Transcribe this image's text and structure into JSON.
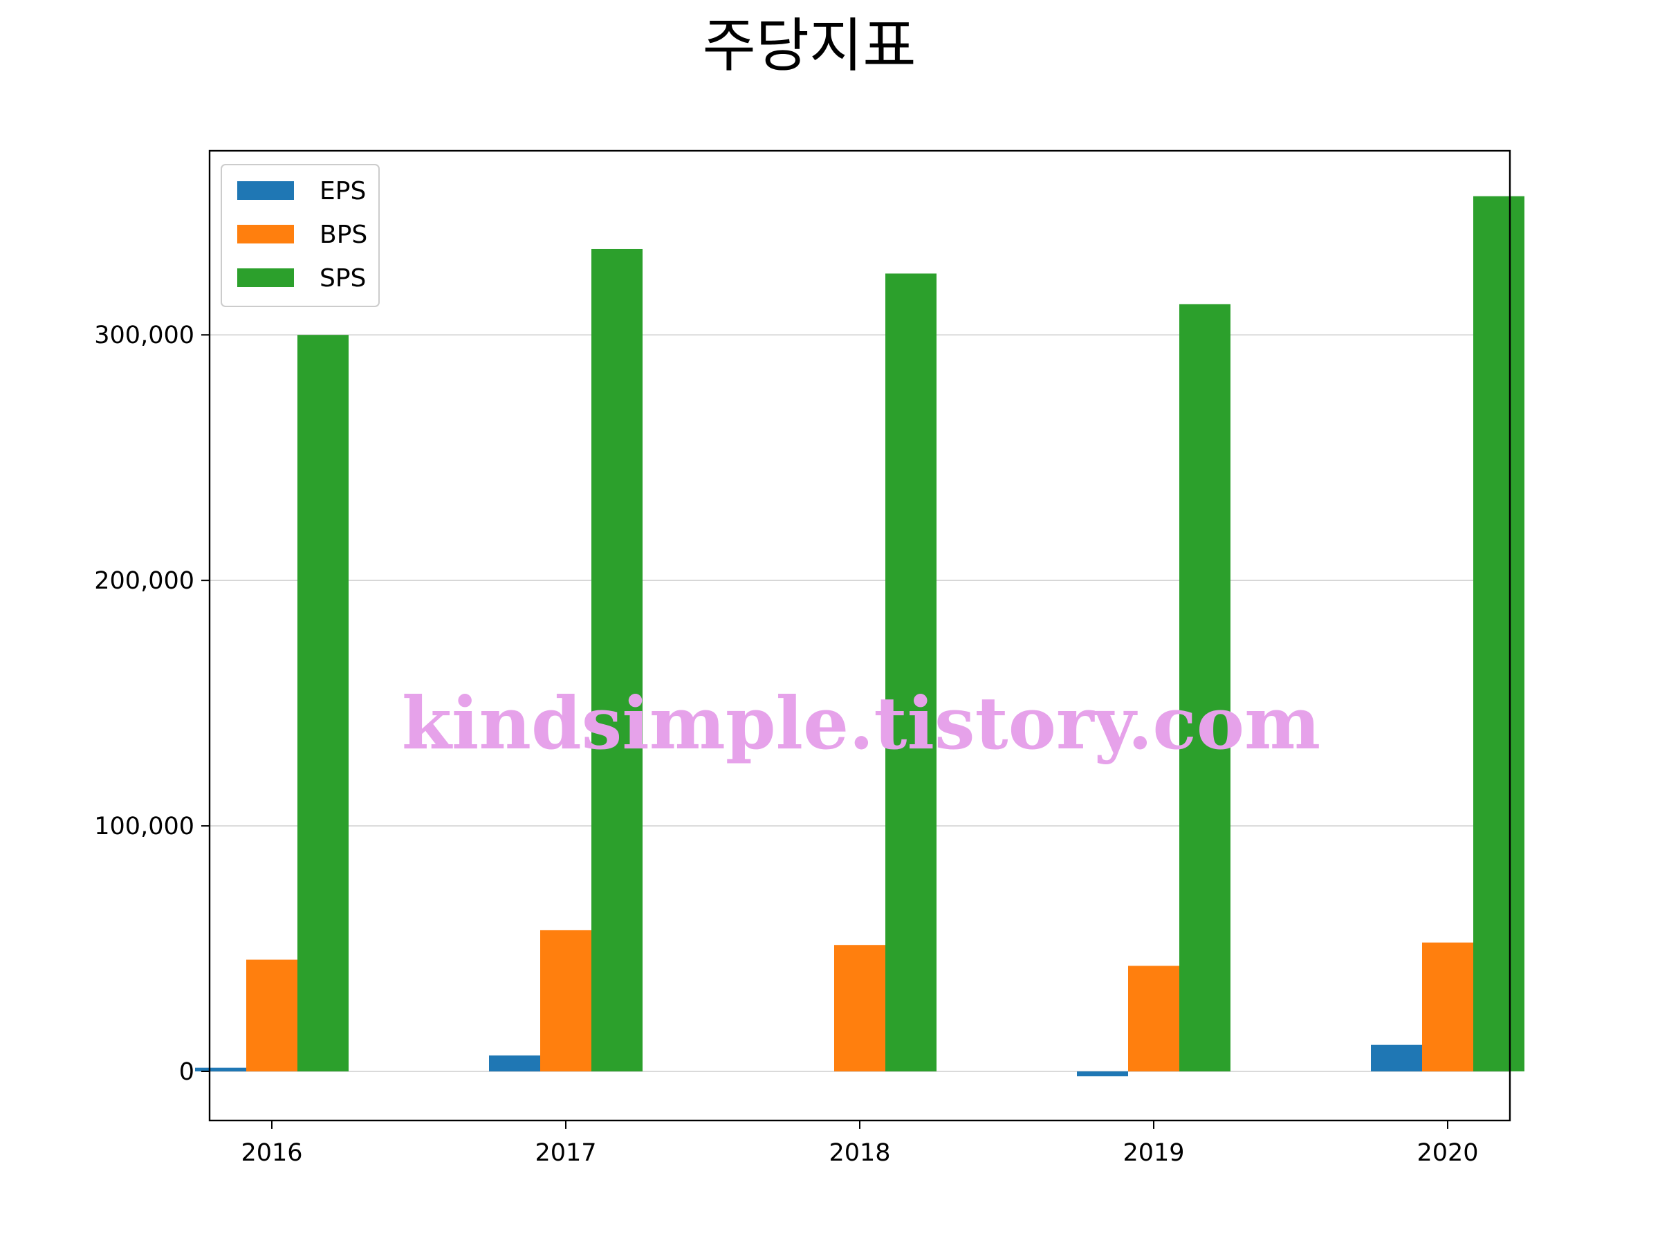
{
  "chart_data": {
    "type": "bar",
    "title": "주당지표",
    "xlabel": "",
    "ylabel": "",
    "categories": [
      "2016",
      "2017",
      "2018",
      "2019",
      "2020"
    ],
    "series": [
      {
        "name": "EPS",
        "color": "#1f77b4",
        "values": [
          1500,
          6500,
          0,
          -2000,
          10800
        ]
      },
      {
        "name": "BPS",
        "color": "#ff7f0e",
        "values": [
          45500,
          57500,
          51500,
          43000,
          52500
        ]
      },
      {
        "name": "SPS",
        "color": "#2ca02c",
        "values": [
          300000,
          335000,
          325000,
          312500,
          356500
        ]
      }
    ],
    "ylim": [
      -20000,
      375000
    ],
    "yticks": [
      0,
      100000,
      200000,
      300000
    ],
    "ytick_labels": [
      "0",
      "100,000",
      "200,000",
      "300,000"
    ],
    "grid": "horizontal",
    "legend_position": "upper-left"
  },
  "watermark": "kindsimple.tistory.com"
}
